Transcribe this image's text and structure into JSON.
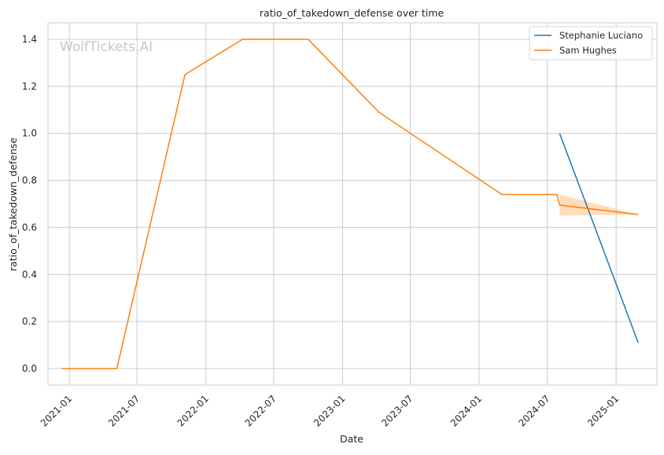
{
  "chart_data": {
    "type": "line",
    "title": "ratio_of_takedown_defense over time",
    "xlabel": "Date",
    "ylabel": "ratio_of_takedown_defense",
    "watermark": "WolfTickets.AI",
    "xlim": [
      "2020-11-05",
      "2025-04-20"
    ],
    "ylim": [
      -0.07,
      1.47
    ],
    "x_ticks": [
      "2021-01-01",
      "2021-07-01",
      "2022-01-01",
      "2022-07-01",
      "2023-01-01",
      "2023-07-01",
      "2024-01-01",
      "2024-07-01",
      "2025-01-01"
    ],
    "x_tick_labels": [
      "2021-01",
      "2021-07",
      "2022-01",
      "2022-07",
      "2023-01",
      "2023-07",
      "2024-01",
      "2024-07",
      "2025-01"
    ],
    "y_ticks": [
      0.0,
      0.2,
      0.4,
      0.6,
      0.8,
      1.0,
      1.2,
      1.4
    ],
    "y_tick_labels": [
      "0.0",
      "0.2",
      "0.4",
      "0.6",
      "0.8",
      "1.0",
      "1.2",
      "1.4"
    ],
    "grid": true,
    "legend_position": "top-right",
    "series": [
      {
        "name": "Stephanie Luciano",
        "color": "#1f77b4",
        "points": [
          {
            "x": "2024-08-03",
            "y": 1.0
          },
          {
            "x": "2025-03-01",
            "y": 0.11
          }
        ]
      },
      {
        "name": "Sam Hughes",
        "color": "#ff7f0e",
        "points": [
          {
            "x": "2020-12-12",
            "y": 0.0
          },
          {
            "x": "2021-05-08",
            "y": 0.0
          },
          {
            "x": "2021-11-06",
            "y": 1.25
          },
          {
            "x": "2022-04-09",
            "y": 1.4
          },
          {
            "x": "2022-10-01",
            "y": 1.4
          },
          {
            "x": "2023-04-08",
            "y": 1.09
          },
          {
            "x": "2024-03-02",
            "y": 0.74
          },
          {
            "x": "2024-07-27",
            "y": 0.74
          },
          {
            "x": "2024-08-03",
            "y": 0.695
          },
          {
            "x": "2025-03-01",
            "y": 0.655
          }
        ],
        "band": {
          "color": "#ffbb78",
          "points": [
            {
              "x": "2024-08-03",
              "low": 0.65,
              "high": 0.74
            },
            {
              "x": "2025-03-01",
              "low": 0.655,
              "high": 0.655
            }
          ]
        }
      }
    ]
  }
}
